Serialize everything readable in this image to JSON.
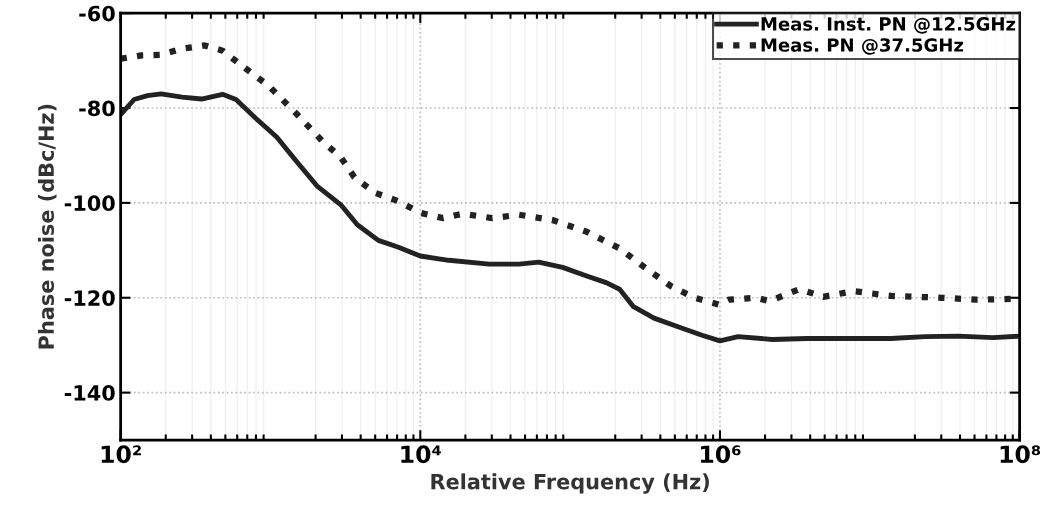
{
  "chart_data": {
    "type": "line",
    "xlabel": "Relative Frequency (Hz)",
    "ylabel": "Phase noise (dBc/Hz)",
    "log": "x",
    "xlim": [
      100,
      100000000
    ],
    "xticks": [
      {
        "value": 100,
        "label": "10²"
      },
      {
        "value": 10000,
        "label": "10⁴"
      },
      {
        "value": 1000000,
        "label": "10⁶"
      },
      {
        "value": 100000000,
        "label": "10⁸"
      }
    ],
    "ylim": [
      -150,
      -60
    ],
    "yticks": [
      -60,
      -80,
      -100,
      -120,
      -140
    ],
    "grid": true,
    "legend": "top right",
    "marker": "none",
    "series": [
      {
        "name": "Meas. Inst. PN @12.5GHz",
        "color": "#222222",
        "line_style": "solid",
        "x": [
          100,
          123,
          151,
          186,
          257,
          347,
          479,
          589,
          794,
          1100,
          1480,
          2040,
          2950,
          3800,
          5250,
          7080,
          10000,
          15500,
          28800,
          45700,
          61700,
          89100,
          129000,
          174000,
          214000,
          263000,
          363000,
          525000,
          759000,
          1000000,
          1320000,
          2240000,
          3800000,
          6310000,
          13800000,
          23400000,
          38900000,
          66100000,
          100000000
        ],
        "values": [
          -81.4,
          -78.2,
          -77.4,
          -77.0,
          -77.7,
          -78.1,
          -77.1,
          -78.2,
          -82.1,
          -86.1,
          -91.1,
          -96.4,
          -100.4,
          -104.6,
          -107.9,
          -109.3,
          -111.2,
          -112.1,
          -112.9,
          -112.9,
          -112.5,
          -113.6,
          -115.4,
          -116.8,
          -118.2,
          -121.8,
          -124.3,
          -126.1,
          -127.9,
          -129.1,
          -128.2,
          -128.8,
          -128.6,
          -128.6,
          -128.6,
          -128.2,
          -128.1,
          -128.4,
          -128.1
        ]
      },
      {
        "name": "Meas. PN @37.5GHz",
        "color": "#222222",
        "line_style": "dotted",
        "x": [
          100,
          138,
          186,
          257,
          363,
          479,
          646,
          977,
          1480,
          2240,
          2950,
          3630,
          5010,
          7080,
          10000,
          14100,
          19100,
          30200,
          45700,
          75900,
          129000,
          214000,
          324000,
          468000,
          676000,
          977000,
          1150000,
          1740000,
          2140000,
          3390000,
          4900000,
          7760000,
          13800000,
          30200000,
          51300000,
          100000000
        ],
        "values": [
          -69.6,
          -68.9,
          -68.8,
          -67.5,
          -66.8,
          -67.9,
          -71.1,
          -75.4,
          -81.1,
          -87.1,
          -90.4,
          -94.6,
          -97.9,
          -99.6,
          -102.1,
          -103.2,
          -102.3,
          -103.2,
          -102.5,
          -103.6,
          -106.1,
          -109.6,
          -113.9,
          -117.5,
          -120.0,
          -121.4,
          -120.4,
          -120.0,
          -120.7,
          -118.2,
          -119.8,
          -118.6,
          -119.6,
          -120.0,
          -120.4,
          -120.2
        ]
      }
    ]
  }
}
